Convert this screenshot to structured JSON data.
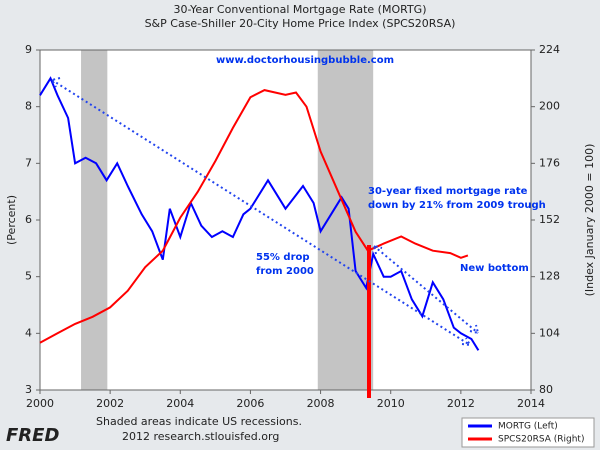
{
  "chart_data": {
    "type": "line",
    "title": "30-Year Conventional Mortgage Rate (MORTG)",
    "subtitle": "S&P Case-Shiller 20-City Home Price Index (SPCS20RSA)",
    "ylabel": "(Percent)",
    "y2label": "(Index January 2000 = 100)",
    "xlim": [
      2000,
      2014
    ],
    "xticks": [
      2000,
      2002,
      2004,
      2006,
      2008,
      2010,
      2012,
      2014
    ],
    "ylim": [
      3,
      9
    ],
    "yticks": [
      3,
      4,
      5,
      6,
      7,
      8,
      9
    ],
    "y2lim": [
      80,
      224
    ],
    "y2ticks": [
      80,
      104,
      128,
      152,
      176,
      200,
      224
    ],
    "recessions": [
      [
        2001.17,
        2001.92
      ],
      [
        2007.92,
        2009.5
      ]
    ],
    "series": [
      {
        "name": "MORTG (Left)",
        "color": "#0000ff",
        "x": [
          2000.0,
          2000.3,
          2000.5,
          2000.8,
          2001.0,
          2001.3,
          2001.6,
          2001.9,
          2002.2,
          2002.5,
          2002.9,
          2003.2,
          2003.5,
          2003.7,
          2004.0,
          2004.3,
          2004.6,
          2004.9,
          2005.2,
          2005.5,
          2005.8,
          2006.0,
          2006.5,
          2006.8,
          2007.0,
          2007.5,
          2007.8,
          2008.0,
          2008.3,
          2008.6,
          2008.8,
          2009.0,
          2009.3,
          2009.5,
          2009.8,
          2010.0,
          2010.3,
          2010.6,
          2010.9,
          2011.2,
          2011.5,
          2011.8,
          2012.0,
          2012.3,
          2012.5
        ],
        "values": [
          8.2,
          8.5,
          8.2,
          7.8,
          7.0,
          7.1,
          7.0,
          6.7,
          7.0,
          6.6,
          6.1,
          5.8,
          5.3,
          6.2,
          5.7,
          6.3,
          5.9,
          5.7,
          5.8,
          5.7,
          6.1,
          6.2,
          6.7,
          6.4,
          6.2,
          6.6,
          6.3,
          5.8,
          6.1,
          6.4,
          6.2,
          5.1,
          4.8,
          5.4,
          5.0,
          5.0,
          5.1,
          4.6,
          4.3,
          4.9,
          4.6,
          4.1,
          4.0,
          3.9,
          3.7
        ]
      },
      {
        "name": "SPCS20RSA (Right)",
        "color": "#ff0000",
        "axis": "y2",
        "x": [
          2000.0,
          2000.5,
          2001.0,
          2001.5,
          2002.0,
          2002.5,
          2003.0,
          2003.5,
          2004.0,
          2004.5,
          2005.0,
          2005.5,
          2006.0,
          2006.4,
          2007.0,
          2007.3,
          2007.6,
          2008.0,
          2008.5,
          2009.0,
          2009.35,
          2009.8,
          2010.3,
          2010.7,
          2011.2,
          2011.7,
          2012.0,
          2012.2
        ],
        "values": [
          100,
          104,
          108,
          111,
          115,
          122,
          132,
          139,
          153,
          164,
          177,
          191,
          204,
          207,
          205,
          206,
          200,
          181,
          164,
          147,
          139,
          142,
          145,
          142,
          139,
          138,
          136,
          137
        ]
      }
    ],
    "annotations": [
      "www.doctorhousingbubble.com",
      "30-year fixed mortgage rate",
      "down by 21% from 2009 trough",
      "55% drop",
      "from 2000",
      "New bottom"
    ],
    "footer": [
      "Shaded areas indicate US recessions.",
      "2012 research.stlouisfed.org"
    ],
    "logo": "FRED"
  }
}
